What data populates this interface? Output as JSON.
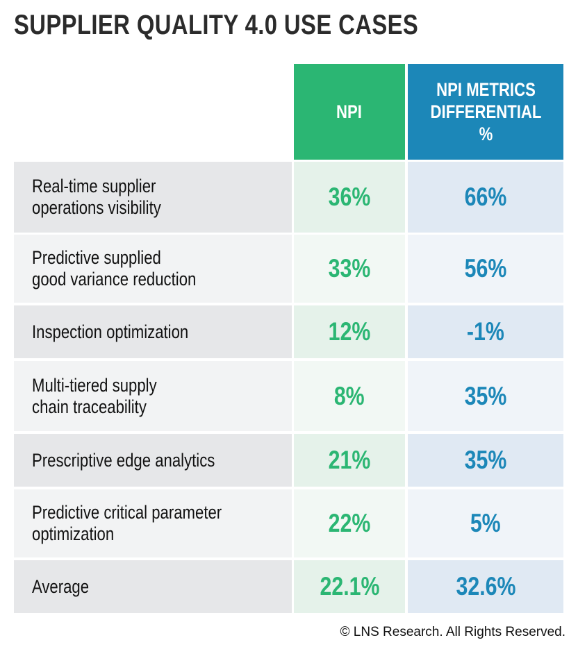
{
  "title": "SUPPLIER QUALITY 4.0 USE CASES",
  "footer": "© LNS Research. All Rights Reserved.",
  "colors": {
    "npi": "#2bb673",
    "differential": "#1c87b8"
  },
  "chart_data": {
    "type": "table",
    "title": "SUPPLIER QUALITY 4.0 USE CASES",
    "columns": [
      "NPI",
      "NPI METRICS DIFFERENTIAL %"
    ],
    "header_lines": {
      "npi": [
        "NPI"
      ],
      "diff": [
        "NPI METRICS",
        "DIFFERENTIAL",
        "%"
      ]
    },
    "rows": [
      {
        "label_lines": [
          "Real-time supplier",
          "operations visibility"
        ],
        "npi": "36%",
        "diff": "66%"
      },
      {
        "label_lines": [
          "Predictive supplied",
          "good variance reduction"
        ],
        "npi": "33%",
        "diff": "56%"
      },
      {
        "label_lines": [
          "Inspection optimization"
        ],
        "npi": "12%",
        "diff": "-1%"
      },
      {
        "label_lines": [
          "Multi-tiered supply",
          "chain traceability"
        ],
        "npi": "8%",
        "diff": "35%"
      },
      {
        "label_lines": [
          "Prescriptive edge analytics"
        ],
        "npi": "21%",
        "diff": "35%"
      },
      {
        "label_lines": [
          "Predictive critical parameter",
          "optimization"
        ],
        "npi": "22%",
        "diff": "5%"
      },
      {
        "label_lines": [
          "Average"
        ],
        "npi": "22.1%",
        "diff": "32.6%"
      }
    ]
  }
}
